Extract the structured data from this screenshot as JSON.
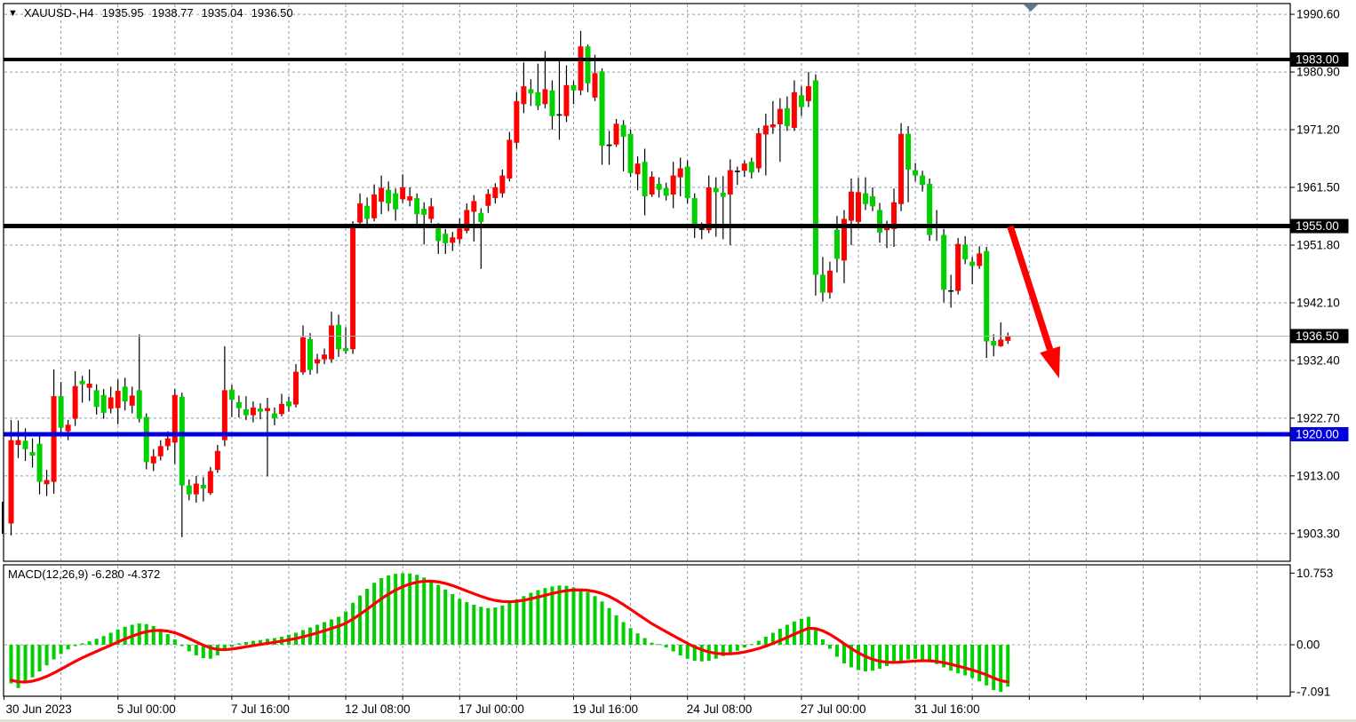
{
  "legend": {
    "marker": "▼",
    "symbol_period": "XAUUSD-,H4",
    "open": "1935.95",
    "high": "1938.77",
    "low": "1935.04",
    "close": "1936.50"
  },
  "indicator": {
    "label": "MACD(12,26,9) -6.280 -4.372"
  },
  "price_axis": {
    "tick_labels": [
      "1990.60",
      "1980.90",
      "1971.20",
      "1961.50",
      "1951.80",
      "1942.10",
      "1932.40",
      "1922.70",
      "1913.00",
      "1903.30"
    ]
  },
  "level_lines": [
    {
      "price": 1983.0,
      "label": "1983.00",
      "color": "#000000",
      "width": 4,
      "label_bg": "#000000"
    },
    {
      "price": 1955.0,
      "label": "1955.00",
      "color": "#000000",
      "width": 5,
      "label_bg": "#000000"
    },
    {
      "price": 1936.5,
      "label": "1936.50",
      "color": "#b4b4b4",
      "width": 1,
      "label_bg": "#000000"
    },
    {
      "price": 1920.0,
      "label": "1920.00",
      "color": "#0000dd",
      "width": 5,
      "label_bg": "#0000dd"
    }
  ],
  "time_axis": {
    "labels": [
      "30 Jun 2023",
      "5 Jul 00:00",
      "7 Jul 16:00",
      "12 Jul 08:00",
      "17 Jul 00:00",
      "19 Jul 16:00",
      "24 Jul 08:00",
      "27 Jul 00:00",
      "31 Jul 16:00"
    ]
  },
  "macd_axis": {
    "max_label": "10.753",
    "zero_label": "0.00",
    "min_label": "-7.091",
    "max": 10.753,
    "min": -7.091
  },
  "chart_data": {
    "type": "candlestick_with_macd",
    "symbol": "XAUUSD-",
    "timeframe": "H4",
    "ohlc_current": {
      "open": 1935.95,
      "high": 1938.77,
      "low": 1935.04,
      "close": 1936.5
    },
    "price_axis_range": [
      1903.3,
      1990.6
    ],
    "candles_format": [
      "body_top",
      "body_bottom",
      "high",
      "low",
      "color r=bull g=bear k=doji"
    ],
    "candles": [
      [
        1919.0,
        1905.0,
        1922.4,
        1903.0,
        "r"
      ],
      [
        1919.0,
        1918.2,
        1922.3,
        1916.0,
        "r"
      ],
      [
        1918.9,
        1917.5,
        1921.0,
        1915.5,
        "g"
      ],
      [
        1917.0,
        1916.4,
        1919.3,
        1914.4,
        "g"
      ],
      [
        1918.4,
        1912.0,
        1920.2,
        1909.9,
        "g"
      ],
      [
        1912.3,
        1911.6,
        1914.0,
        1909.6,
        "r"
      ],
      [
        1926.4,
        1912.0,
        1930.9,
        1910.0,
        "r"
      ],
      [
        1926.4,
        1921.1,
        1928.8,
        1920.3,
        "g"
      ],
      [
        1921.6,
        1920.5,
        1922.4,
        1919.0,
        "r"
      ],
      [
        1928.1,
        1922.6,
        1930.6,
        1921.4,
        "r"
      ],
      [
        1929.0,
        1928.4,
        1929.8,
        1925.3,
        "g"
      ],
      [
        1928.5,
        1927.8,
        1930.9,
        1925.6,
        "r"
      ],
      [
        1927.4,
        1924.6,
        1928.4,
        1923.3,
        "g"
      ],
      [
        1926.6,
        1923.6,
        1927.6,
        1922.6,
        "g"
      ],
      [
        1926.2,
        1924.3,
        1928.0,
        1923.5,
        "r"
      ],
      [
        1927.3,
        1924.4,
        1929.2,
        1921.7,
        "r"
      ],
      [
        1928.0,
        1925.5,
        1929.5,
        1924.0,
        "g"
      ],
      [
        1926.5,
        1924.8,
        1928.0,
        1923.5,
        "r"
      ],
      [
        1927.4,
        1922.6,
        1936.8,
        1922.0,
        "g"
      ],
      [
        1922.9,
        1915.3,
        1923.5,
        1914.1,
        "g"
      ],
      [
        1916.3,
        1915.1,
        1917.5,
        1913.8,
        "r"
      ],
      [
        1918.0,
        1916.3,
        1919.0,
        1915.6,
        "r"
      ],
      [
        1919.3,
        1918.0,
        1920.5,
        1917.3,
        "r"
      ],
      [
        1926.6,
        1918.6,
        1927.6,
        1915.0,
        "r"
      ],
      [
        1926.3,
        1911.4,
        1927.0,
        1902.7,
        "g"
      ],
      [
        1911.4,
        1909.9,
        1912.4,
        1908.9,
        "g"
      ],
      [
        1911.7,
        1909.9,
        1913.0,
        1908.5,
        "r"
      ],
      [
        1911.5,
        1910.9,
        1912.8,
        1908.7,
        "g"
      ],
      [
        1913.8,
        1910.1,
        1914.5,
        1909.8,
        "r"
      ],
      [
        1917.2,
        1914.0,
        1918.2,
        1913.5,
        "r"
      ],
      [
        1927.4,
        1919.0,
        1934.8,
        1918.0,
        "r"
      ],
      [
        1927.5,
        1925.8,
        1928.3,
        1922.9,
        "g"
      ],
      [
        1925.4,
        1924.4,
        1926.5,
        1922.8,
        "g"
      ],
      [
        1924.2,
        1923.2,
        1926.4,
        1922.4,
        "g"
      ],
      [
        1924.5,
        1923.2,
        1925.5,
        1922.0,
        "r"
      ],
      [
        1924.3,
        1923.8,
        1925.2,
        1922.5,
        "g"
      ],
      [
        1924.4,
        1923.9,
        1926.1,
        1912.9,
        "r"
      ],
      [
        1923.5,
        1922.7,
        1924.5,
        1921.5,
        "g"
      ],
      [
        1925.1,
        1923.4,
        1926.8,
        1923.0,
        "r"
      ],
      [
        1925.5,
        1924.7,
        1926.3,
        1923.8,
        "g"
      ],
      [
        1930.5,
        1925.0,
        1931.8,
        1924.5,
        "r"
      ],
      [
        1936.3,
        1930.4,
        1938.3,
        1930.0,
        "r"
      ],
      [
        1936.0,
        1930.8,
        1937.0,
        1930.0,
        "g"
      ],
      [
        1932.6,
        1931.9,
        1933.5,
        1930.2,
        "r"
      ],
      [
        1933.4,
        1932.6,
        1934.4,
        1931.8,
        "r"
      ],
      [
        1938.3,
        1932.6,
        1940.6,
        1932.0,
        "r"
      ],
      [
        1938.4,
        1934.3,
        1940.1,
        1933.0,
        "g"
      ],
      [
        1934.5,
        1934.0,
        1938.0,
        1933.5,
        "g"
      ],
      [
        1955.3,
        1934.3,
        1955.8,
        1933.5,
        "r"
      ],
      [
        1958.8,
        1955.6,
        1960.5,
        1955.1,
        "r"
      ],
      [
        1958.4,
        1956.2,
        1959.8,
        1954.6,
        "g"
      ],
      [
        1960.3,
        1956.3,
        1962.0,
        1955.8,
        "r"
      ],
      [
        1961.4,
        1959.1,
        1963.5,
        1957.0,
        "r"
      ],
      [
        1961.1,
        1958.8,
        1962.5,
        1957.5,
        "g"
      ],
      [
        1960.5,
        1957.8,
        1961.3,
        1955.9,
        "g"
      ],
      [
        1961.5,
        1959.5,
        1963.7,
        1958.9,
        "r"
      ],
      [
        1960.0,
        1959.3,
        1961.5,
        1958.3,
        "r"
      ],
      [
        1959.7,
        1957.0,
        1960.5,
        1955.1,
        "g"
      ],
      [
        1957.9,
        1956.9,
        1959.0,
        1951.9,
        "g"
      ],
      [
        1958.3,
        1956.2,
        1959.7,
        1955.5,
        "r"
      ],
      [
        1954.6,
        1952.5,
        1955.5,
        1950.3,
        "g"
      ],
      [
        1953.7,
        1952.1,
        1954.5,
        1950.3,
        "g"
      ],
      [
        1953.1,
        1952.2,
        1954.0,
        1950.8,
        "r"
      ],
      [
        1954.6,
        1952.8,
        1956.3,
        1952.0,
        "r"
      ],
      [
        1957.7,
        1954.2,
        1958.8,
        1953.8,
        "r"
      ],
      [
        1959.2,
        1957.4,
        1960.2,
        1952.4,
        "r"
      ],
      [
        1957.2,
        1955.7,
        1958.0,
        1947.8,
        "g"
      ],
      [
        1960.4,
        1958.4,
        1961.2,
        1957.2,
        "r"
      ],
      [
        1961.5,
        1959.7,
        1962.2,
        1958.8,
        "r"
      ],
      [
        1963.5,
        1960.5,
        1964.5,
        1959.8,
        "r"
      ],
      [
        1969.5,
        1963.0,
        1970.8,
        1962.5,
        "r"
      ],
      [
        1976.0,
        1969.0,
        1977.5,
        1968.0,
        "r"
      ],
      [
        1978.5,
        1975.5,
        1982.5,
        1974.0,
        "r"
      ],
      [
        1978.0,
        1977.3,
        1979.7,
        1975.2,
        "g"
      ],
      [
        1977.5,
        1975.2,
        1982.3,
        1974.5,
        "g"
      ],
      [
        1978.0,
        1975.5,
        1984.4,
        1974.8,
        "r"
      ],
      [
        1977.8,
        1973.5,
        1979.5,
        1971.2,
        "g"
      ],
      [
        1973.8,
        1973.6,
        1983.0,
        1969.5,
        "k"
      ],
      [
        1978.7,
        1973.5,
        1982.0,
        1972.5,
        "r"
      ],
      [
        1978.7,
        1977.8,
        1979.4,
        1975.5,
        "g"
      ],
      [
        1985.2,
        1977.8,
        1987.8,
        1977.0,
        "r"
      ],
      [
        1985.2,
        1979.0,
        1985.5,
        1977.5,
        "g"
      ],
      [
        1980.7,
        1976.6,
        1983.8,
        1976.0,
        "r"
      ],
      [
        1981.0,
        1968.5,
        1981.5,
        1965.3,
        "g"
      ],
      [
        1968.7,
        1968.5,
        1971.0,
        1965.3,
        "k"
      ],
      [
        1972.2,
        1968.7,
        1973.0,
        1968.3,
        "r"
      ],
      [
        1972.0,
        1970.0,
        1972.8,
        1964.2,
        "g"
      ],
      [
        1970.5,
        1963.9,
        1971.2,
        1963.3,
        "g"
      ],
      [
        1965.5,
        1963.7,
        1966.7,
        1961.0,
        "r"
      ],
      [
        1965.8,
        1960.0,
        1968.0,
        1956.8,
        "g"
      ],
      [
        1963.3,
        1960.3,
        1964.2,
        1959.9,
        "r"
      ],
      [
        1962.1,
        1961.1,
        1963.2,
        1959.8,
        "g"
      ],
      [
        1961.4,
        1960.1,
        1962.3,
        1959.3,
        "g"
      ],
      [
        1963.5,
        1960.3,
        1965.8,
        1958.0,
        "r"
      ],
      [
        1964.7,
        1963.2,
        1966.5,
        1960.0,
        "r"
      ],
      [
        1965.0,
        1959.7,
        1966.0,
        1958.8,
        "g"
      ],
      [
        1959.7,
        1955.2,
        1960.5,
        1953.0,
        "g"
      ],
      [
        1954.6,
        1954.4,
        1955.6,
        1952.8,
        "k"
      ],
      [
        1961.5,
        1954.3,
        1963.5,
        1953.8,
        "r"
      ],
      [
        1961.4,
        1960.7,
        1963.2,
        1953.2,
        "g"
      ],
      [
        1960.6,
        1959.9,
        1963.4,
        1952.8,
        "g"
      ],
      [
        1964.4,
        1960.3,
        1966.2,
        1951.8,
        "r"
      ],
      [
        1964.3,
        1964.1,
        1965.0,
        1961.9,
        "k"
      ],
      [
        1965.5,
        1964.3,
        1966.0,
        1963.3,
        "r"
      ],
      [
        1965.8,
        1964.0,
        1966.5,
        1963.0,
        "g"
      ],
      [
        1970.6,
        1964.7,
        1971.5,
        1964.0,
        "r"
      ],
      [
        1971.9,
        1970.4,
        1973.9,
        1963.5,
        "r"
      ],
      [
        1972.1,
        1971.6,
        1976.0,
        1970.5,
        "r"
      ],
      [
        1974.7,
        1972.1,
        1976.5,
        1965.8,
        "r"
      ],
      [
        1974.8,
        1971.8,
        1976.8,
        1971.0,
        "g"
      ],
      [
        1977.5,
        1971.5,
        1979.5,
        1971.0,
        "r"
      ],
      [
        1977.0,
        1975.0,
        1978.5,
        1973.5,
        "g"
      ],
      [
        1978.5,
        1976.0,
        1980.9,
        1975.0,
        "r"
      ],
      [
        1979.5,
        1946.8,
        1980.5,
        1943.3,
        "g"
      ],
      [
        1946.8,
        1943.8,
        1949.8,
        1942.3,
        "g"
      ],
      [
        1947.5,
        1943.8,
        1949.0,
        1942.8,
        "r"
      ],
      [
        1954.4,
        1949.5,
        1956.7,
        1947.2,
        "g"
      ],
      [
        1956.2,
        1949.2,
        1957.7,
        1945.4,
        "r"
      ],
      [
        1960.8,
        1955.9,
        1963.0,
        1951.8,
        "r"
      ],
      [
        1960.7,
        1955.7,
        1963.1,
        1955.0,
        "r"
      ],
      [
        1960.5,
        1958.7,
        1963.2,
        1957.7,
        "g"
      ],
      [
        1960.0,
        1958.3,
        1961.5,
        1957.5,
        "g"
      ],
      [
        1957.7,
        1953.9,
        1958.9,
        1952.2,
        "g"
      ],
      [
        1954.9,
        1954.3,
        1955.9,
        1951.3,
        "r"
      ],
      [
        1959.0,
        1954.5,
        1961.3,
        1951.5,
        "r"
      ],
      [
        1970.5,
        1958.7,
        1972.3,
        1957.5,
        "r"
      ],
      [
        1970.5,
        1964.5,
        1971.8,
        1959.0,
        "g"
      ],
      [
        1964.4,
        1963.5,
        1965.6,
        1962.5,
        "g"
      ],
      [
        1963.5,
        1961.9,
        1964.3,
        1960.8,
        "g"
      ],
      [
        1962.1,
        1953.5,
        1963.0,
        1952.5,
        "g"
      ],
      [
        1955.0,
        1954.8,
        1957.7,
        1952.5,
        "k"
      ],
      [
        1953.5,
        1944.3,
        1954.5,
        1942.2,
        "g"
      ],
      [
        1944.2,
        1944.0,
        1946.8,
        1941.3,
        "k"
      ],
      [
        1952.0,
        1944.1,
        1953.0,
        1943.5,
        "r"
      ],
      [
        1951.9,
        1949.4,
        1953.3,
        1948.6,
        "g"
      ],
      [
        1949.0,
        1948.3,
        1949.8,
        1945.2,
        "g"
      ],
      [
        1950.4,
        1948.3,
        1951.6,
        1947.8,
        "r"
      ],
      [
        1950.8,
        1935.6,
        1951.5,
        1932.8,
        "g"
      ],
      [
        1935.7,
        1934.9,
        1936.8,
        1933.1,
        "g"
      ],
      [
        1935.9,
        1934.8,
        1938.8,
        1934.7,
        "r"
      ],
      [
        1936.5,
        1935.7,
        1937.1,
        1935.2,
        "r"
      ]
    ],
    "macd": {
      "histogram": [
        -5.8,
        -6.5,
        -5.8,
        -4.9,
        -4.0,
        -3.1,
        -2.2,
        -1.4,
        -0.7,
        -0.2,
        0.2,
        0.5,
        0.9,
        1.3,
        1.8,
        2.3,
        2.7,
        3.0,
        3.2,
        3.1,
        2.8,
        2.3,
        1.6,
        0.8,
        -0.2,
        -1.0,
        -1.6,
        -2.0,
        -2.1,
        -1.6,
        -0.9,
        -0.3,
        0.2,
        0.4,
        0.6,
        0.7,
        0.9,
        1.0,
        1.2,
        1.5,
        1.8,
        2.2,
        2.6,
        3.0,
        3.4,
        3.8,
        4.2,
        5.0,
        6.3,
        7.4,
        8.4,
        9.3,
        10.0,
        10.4,
        10.65,
        10.753,
        10.7,
        10.5,
        10.1,
        9.6,
        9.0,
        8.3,
        7.6,
        6.9,
        6.4,
        6.0,
        5.7,
        5.5,
        5.6,
        5.9,
        6.3,
        6.8,
        7.3,
        7.8,
        8.2,
        8.5,
        8.75,
        8.9,
        8.85,
        8.6,
        8.3,
        7.9,
        7.3,
        6.5,
        5.5,
        4.4,
        3.4,
        2.5,
        1.7,
        1.0,
        0.3,
        0.1,
        -0.4,
        -1.0,
        -1.6,
        -2.1,
        -2.4,
        -2.5,
        -2.4,
        -2.1,
        -1.7,
        -1.3,
        -0.9,
        -0.4,
        0.1,
        0.6,
        1.2,
        1.8,
        2.4,
        3.0,
        3.5,
        3.9,
        4.2,
        2.2,
        0.8,
        -0.6,
        -1.8,
        -2.8,
        -3.4,
        -3.8,
        -4.0,
        -3.9,
        -3.6,
        -3.2,
        -2.8,
        -2.4,
        -2.2,
        -2.1,
        -2.2,
        -2.5,
        -2.9,
        -3.4,
        -3.9,
        -4.3,
        -4.6,
        -5.0,
        -5.5,
        -6.1,
        -6.8,
        -7.091,
        -6.28
      ],
      "signal": "ema9_of_histogram",
      "signal_seed": -5.2,
      "macd_current": -6.28,
      "signal_current": -4.372
    }
  },
  "annotations": {
    "arrow": {
      "shape": "down-right",
      "color": "#ff0000"
    },
    "shift_marker": "▼"
  },
  "colors": {
    "bull": "#ff0000",
    "bear": "#00cf00",
    "doji": "#000000",
    "wick": "#000000",
    "grid": "#8c9cae",
    "signal": "#ff0000",
    "histogram": "#00cf00",
    "background": "#ffffff",
    "pane_border": "#000000",
    "shift_marker": "#5a7a8c",
    "arrow": "#ff0000"
  }
}
